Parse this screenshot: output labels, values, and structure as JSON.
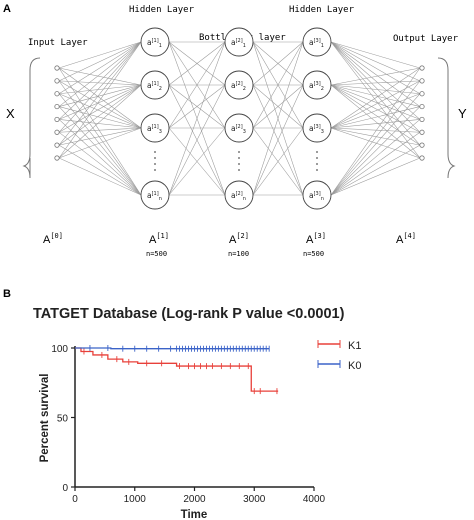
{
  "panel_a": {
    "panel_label": "A",
    "layer_titles": {
      "input": "Input Layer",
      "hidden1": "Hidden Layer",
      "bottleneck": "Bottleneck layer",
      "hidden3": "Hidden Layer",
      "output": "Output Layer"
    },
    "side_labels": {
      "left": "X",
      "right": "Y"
    },
    "matrix_labels": [
      "A",
      "A",
      "A",
      "A",
      "A"
    ],
    "matrix_superscripts": [
      "[0]",
      "[1]",
      "[2]",
      "[3]",
      "[4]"
    ],
    "size_labels": [
      "n=500",
      "n=100",
      "n=500"
    ],
    "node_labels": {
      "layer1": [
        "a[1]1",
        "a[1]2",
        "a[1]3",
        "a[1]n"
      ],
      "layer2": [
        "a[2]1",
        "a[2]2",
        "a[2]3",
        "a[2]n"
      ],
      "layer3": [
        "a[3]1",
        "a[3]2",
        "a[3]3",
        "a[3]n"
      ]
    },
    "node_parts": {
      "base": "a",
      "supers": {
        "layer1": "[1]",
        "layer2": "[2]",
        "layer3": "[3]"
      },
      "subs": [
        "1",
        "2",
        "3",
        "n"
      ]
    },
    "input_node_count": 8,
    "output_node_count": 8
  },
  "panel_b": {
    "panel_label": "B",
    "title": "TATGET Database (Log-rank P value <0.0001)",
    "ylabel": "Percent survival",
    "xlabel": "Time",
    "legend": [
      "K1",
      "K0"
    ],
    "colors": {
      "K1": "#e8403a",
      "K0": "#3b63c8"
    }
  },
  "chart_data": {
    "type": "line",
    "title": "TATGET Database (Log-rank P value <0.0001)",
    "xlabel": "Time",
    "ylabel": "Percent survival",
    "xlim": [
      0,
      4000
    ],
    "ylim": [
      0,
      100
    ],
    "xticks": [
      0,
      1000,
      2000,
      3000,
      4000
    ],
    "yticks": [
      0,
      50,
      100
    ],
    "legend_position": "right",
    "grid": false,
    "series": [
      {
        "name": "K1",
        "color": "#e8403a",
        "step": true,
        "x": [
          0,
          100,
          300,
          550,
          800,
          1050,
          1700,
          2950,
          3400
        ],
        "y": [
          100,
          97.5,
          95,
          92,
          90,
          89,
          87,
          69,
          69
        ],
        "censor_x": [
          150,
          450,
          700,
          900,
          1200,
          1450,
          1750,
          1900,
          2000,
          2100,
          2200,
          2300,
          2450,
          2600,
          2750,
          2900,
          3000,
          3100,
          3380
        ]
      },
      {
        "name": "K0",
        "color": "#3b63c8",
        "step": true,
        "x": [
          0,
          600,
          3250
        ],
        "y": [
          100,
          99.5,
          99.5
        ],
        "censor_x": [
          250,
          550,
          800,
          1000,
          1200,
          1400,
          1600,
          1700,
          1750,
          1800,
          1850,
          1900,
          1950,
          2000,
          2050,
          2100,
          2150,
          2200,
          2250,
          2300,
          2350,
          2400,
          2450,
          2500,
          2550,
          2600,
          2650,
          2700,
          2750,
          2800,
          2850,
          2900,
          2950,
          3000,
          3050,
          3100,
          3150,
          3200,
          3250
        ]
      }
    ]
  }
}
